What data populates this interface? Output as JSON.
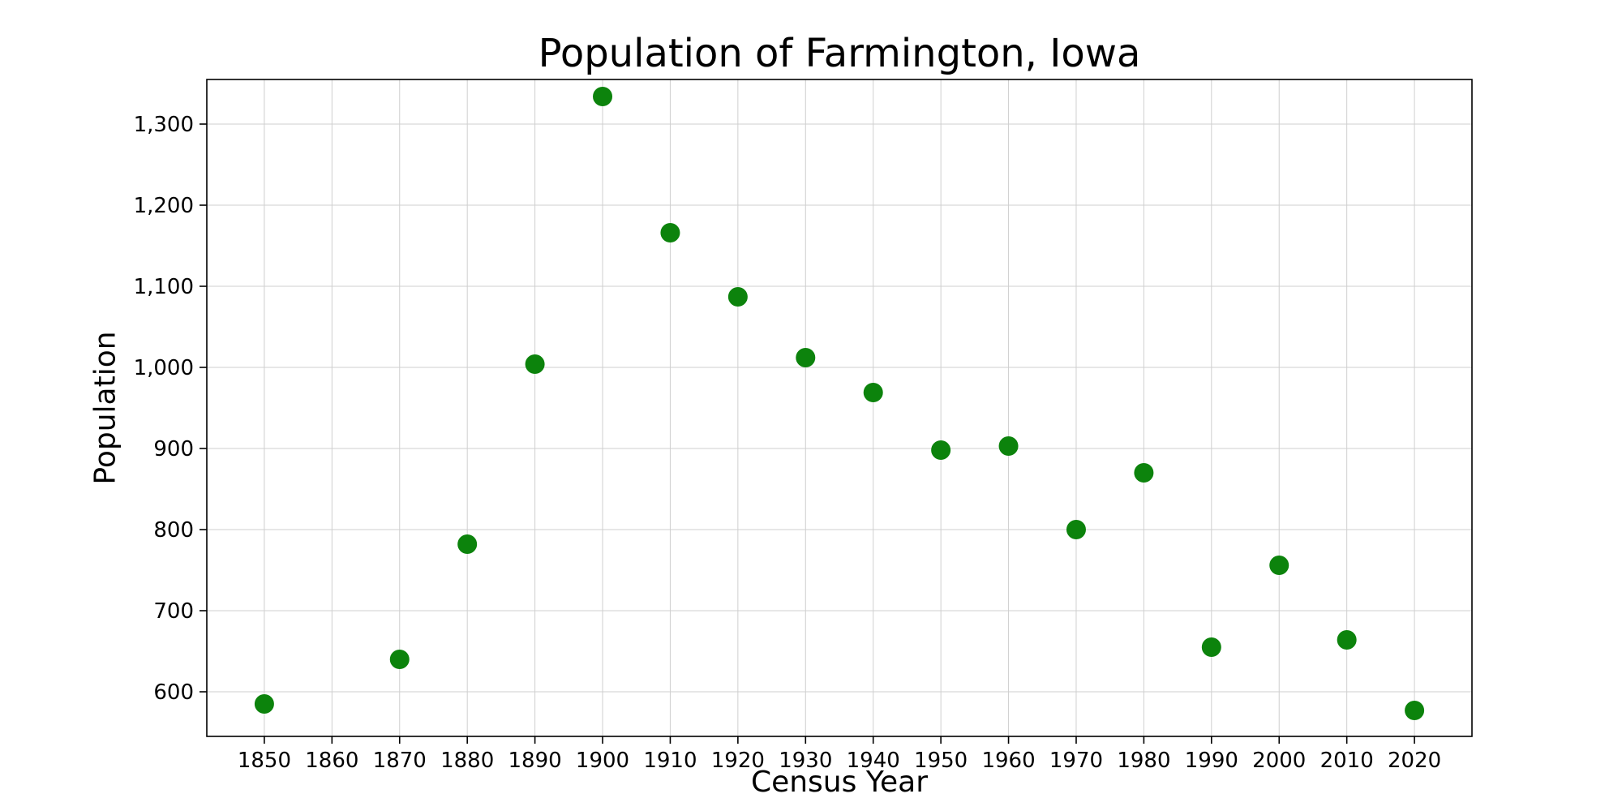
{
  "chart_data": {
    "type": "scatter",
    "title": "Population of Farmington, Iowa",
    "xlabel": "Census Year",
    "ylabel": "Population",
    "x": [
      1850,
      1870,
      1880,
      1890,
      1900,
      1910,
      1920,
      1930,
      1940,
      1950,
      1960,
      1970,
      1980,
      1990,
      2000,
      2010,
      2020
    ],
    "y": [
      585,
      640,
      782,
      1004,
      1334,
      1166,
      1087,
      1012,
      969,
      898,
      903,
      800,
      870,
      655,
      756,
      664,
      577
    ],
    "xlim": [
      1841.5,
      2028.5
    ],
    "ylim": [
      545,
      1355
    ],
    "xticks": [
      1850,
      1860,
      1870,
      1880,
      1890,
      1900,
      1910,
      1920,
      1930,
      1940,
      1950,
      1960,
      1970,
      1980,
      1990,
      2000,
      2010,
      2020
    ],
    "xtick_labels": [
      "1850",
      "1860",
      "1870",
      "1880",
      "1890",
      "1900",
      "1910",
      "1920",
      "1930",
      "1940",
      "1950",
      "1960",
      "1970",
      "1980",
      "1990",
      "2000",
      "2010",
      "2020"
    ],
    "yticks": [
      600,
      700,
      800,
      900,
      1000,
      1100,
      1200,
      1300
    ],
    "ytick_labels": [
      "600",
      "700",
      "800",
      "900",
      "1,000",
      "1,100",
      "1,200",
      "1,300"
    ],
    "grid": true,
    "legend": "none",
    "marker_color": "#0c830c",
    "marker_radius": 12,
    "grid_color": "#cfcfcf",
    "spine_color": "#000000",
    "background_color": "#ffffff"
  }
}
